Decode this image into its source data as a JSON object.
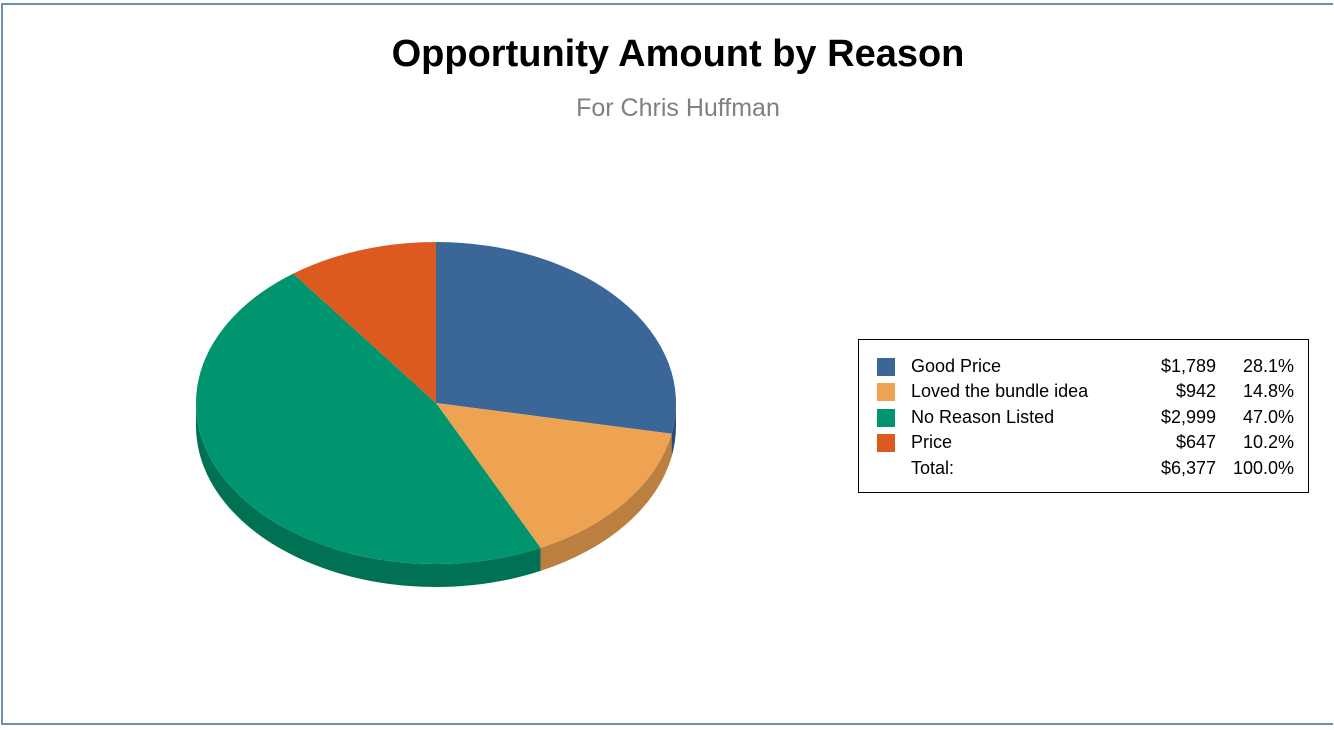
{
  "chart_data": {
    "type": "pie",
    "title": "Opportunity Amount by Reason",
    "subtitle": "For Chris Huffman",
    "style": "3d",
    "legend_placement": "right",
    "slices": [
      {
        "label": "Good Price",
        "value": 1789,
        "amount_text": "$1,789",
        "percent_text": "28.1%",
        "color": "#3a6698",
        "side_color": "#2b4d73"
      },
      {
        "label": "Loved the bundle idea",
        "value": 942,
        "amount_text": "$942",
        "percent_text": "14.8%",
        "color": "#eea353",
        "side_color": "#bb7f3f"
      },
      {
        "label": "No Reason Listed",
        "value": 2999,
        "amount_text": "$2,999",
        "percent_text": "47.0%",
        "color": "#00946f",
        "side_color": "#007253"
      },
      {
        "label": "Price",
        "value": 647,
        "amount_text": "$647",
        "percent_text": "10.2%",
        "color": "#dc5a20",
        "side_color": "#a84418"
      }
    ],
    "total": {
      "label": "Total:",
      "value": 6377,
      "amount_text": "$6,377",
      "percent_text": "100.0%"
    }
  }
}
